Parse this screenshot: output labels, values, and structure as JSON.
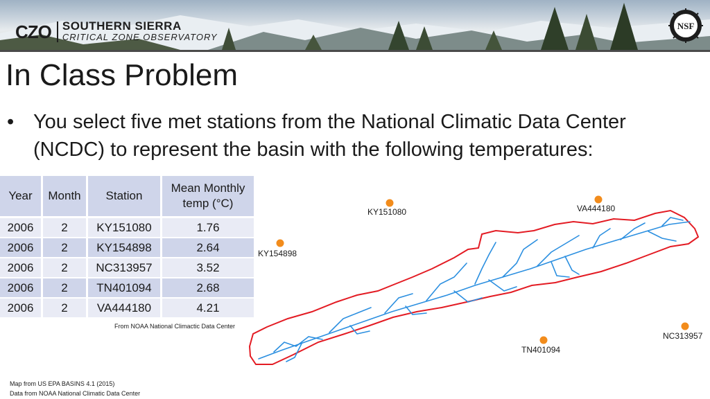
{
  "header": {
    "logo_mark": "CZO",
    "logo_line1": "SOUTHERN SIERRA",
    "logo_line2": "CRITICAL ZONE OBSERVATORY",
    "nsf_text": "NSF"
  },
  "slide": {
    "title": "In Class Problem",
    "bullet": "You select five met stations from the National Climatic Data Center (NCDC) to represent the basin with the following temperatures:"
  },
  "table": {
    "headers": [
      "Year",
      "Month",
      "Station",
      "Mean Monthly temp (°C)"
    ],
    "rows": [
      [
        "2006",
        "2",
        "KY151080",
        "1.76"
      ],
      [
        "2006",
        "2",
        "KY154898",
        "2.64"
      ],
      [
        "2006",
        "2",
        "NC313957",
        "3.52"
      ],
      [
        "2006",
        "2",
        "TN401094",
        "2.68"
      ],
      [
        "2006",
        "2",
        "VA444180",
        "4.21"
      ]
    ]
  },
  "table_source": "From NOAA National Climactic Data Center",
  "map": {
    "stations": [
      "KY151080",
      "VA444180",
      "KY154898",
      "NC313957",
      "TN401094"
    ],
    "station_color": "#f28c1c",
    "boundary_color": "#e31b23",
    "stream_color": "#2b8fe0"
  },
  "footer": {
    "line1": "Map from US EPA BASINS 4.1 (2015)",
    "line2": "Data from NOAA National Climatic Data Center"
  }
}
